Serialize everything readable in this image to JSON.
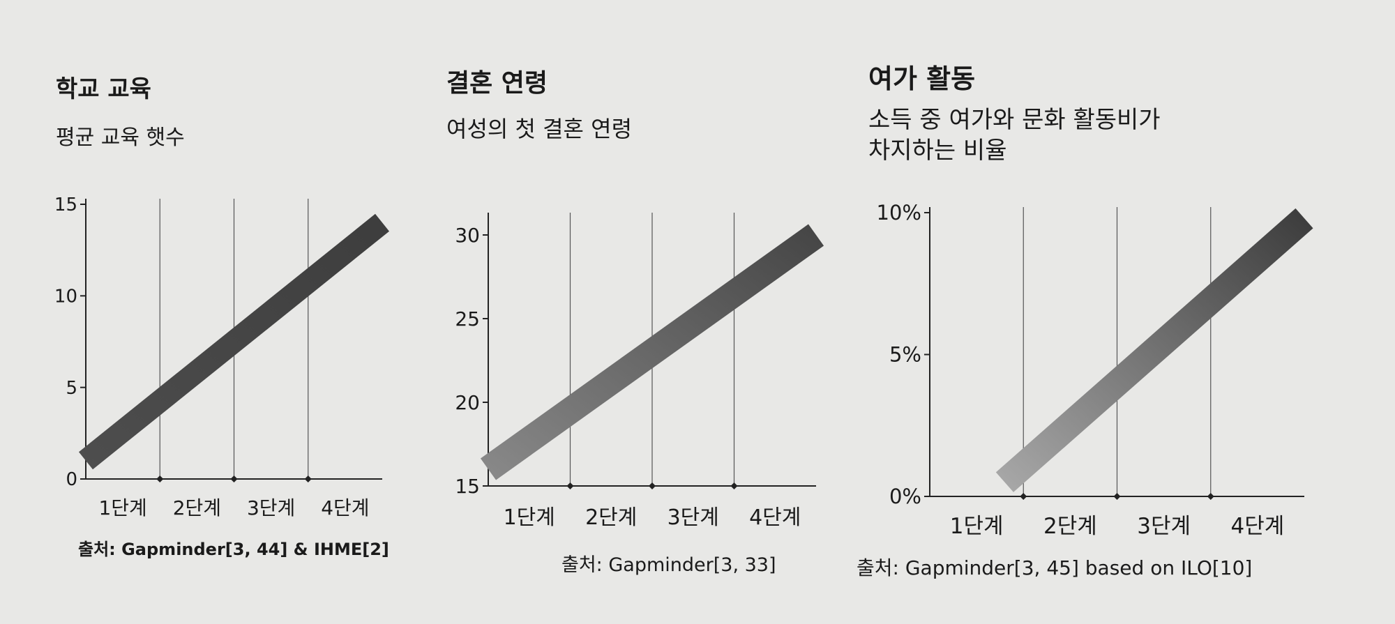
{
  "chart_data": [
    {
      "type": "line",
      "title": "학교 교육",
      "subtitle": "평균 교육 햇수",
      "categories": [
        "1단계",
        "2단계",
        "3단계",
        "4단계"
      ],
      "series": [
        {
          "x": [
            0.0,
            4.0
          ],
          "values": [
            1.0,
            14.0
          ]
        }
      ],
      "ylim": [
        0,
        15
      ],
      "yticks": [
        "0",
        "5",
        "10",
        "15"
      ],
      "grid": "vertical",
      "source": "출처: Gapminder[3, 44] & IHME[2]"
    },
    {
      "type": "line",
      "title": "결혼 연령",
      "subtitle": "여성의 첫 결혼 연령",
      "categories": [
        "1단계",
        "2단계",
        "3단계",
        "4단계"
      ],
      "series": [
        {
          "x": [
            0.0,
            4.0
          ],
          "values": [
            16.0,
            30.0
          ]
        }
      ],
      "ylim": [
        15,
        31
      ],
      "yticks": [
        "15",
        "20",
        "25",
        "30"
      ],
      "grid": "vertical",
      "source": "출처: Gapminder[3, 33]"
    },
    {
      "type": "line",
      "title": "여가 활동",
      "subtitle": "소득 중 여가와 문화 활동비가\n차지하는 비율",
      "categories": [
        "1단계",
        "2단계",
        "3단계",
        "4단계"
      ],
      "series": [
        {
          "x": [
            0.8,
            4.0
          ],
          "values": [
            0.5,
            9.8
          ]
        }
      ],
      "ylim": [
        0,
        10
      ],
      "yticks": [
        "0%",
        "5%",
        "10%"
      ],
      "grid": "vertical",
      "source": "출처: Gapminder[3, 45] based on ILO[10]"
    }
  ]
}
